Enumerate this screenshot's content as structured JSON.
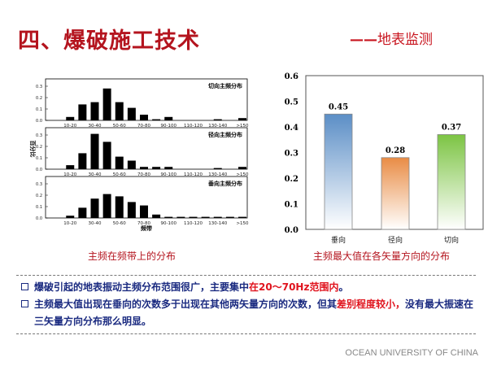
{
  "header": {
    "title": "四、爆破施工技术",
    "subtitle_dash": "——",
    "subtitle": "地表监测"
  },
  "chart_data": [
    {
      "type": "bar",
      "title": "主频在频带上的分布",
      "ylabel": "百分比",
      "xlabel": "频带",
      "ylim": [
        0,
        0.35
      ],
      "yticks": [
        "0.0",
        "0.1",
        "0.2",
        "0.3"
      ],
      "categories": [
        "10-20",
        "20-30",
        "30-40",
        "40-50",
        "50-60",
        "60-70",
        "70-80",
        "80-90",
        "90-100",
        "100-110",
        "110-120",
        "120-130",
        "130-140",
        "140-150",
        ">150"
      ],
      "tick_labels": [
        "10-20",
        "30-40",
        "50-60",
        "70-80",
        "90-100",
        "110-120",
        "130-140",
        ">150"
      ],
      "panels": [
        {
          "name": "切向主频分布",
          "values": [
            0.03,
            0.14,
            0.16,
            0.28,
            0.16,
            0.11,
            0.05,
            0.01,
            0.03,
            0,
            0,
            0,
            0.01,
            0,
            0.02
          ]
        },
        {
          "name": "径向主频分布",
          "values": [
            0.035,
            0.14,
            0.31,
            0.24,
            0.11,
            0.075,
            0.02,
            0.02,
            0.02,
            0,
            0,
            0,
            0.01,
            0,
            0.02
          ]
        },
        {
          "name": "垂向主频分布",
          "values": [
            0.02,
            0.09,
            0.17,
            0.21,
            0.19,
            0.14,
            0.11,
            0.03,
            0.01,
            0.01,
            0.01,
            0.01,
            0.01,
            0.01,
            0.01
          ]
        }
      ]
    },
    {
      "type": "bar",
      "title": "主频最大值在各矢量方向的分布",
      "ylim": [
        0,
        0.6
      ],
      "yticks": [
        "0.0",
        "0.1",
        "0.2",
        "0.3",
        "0.4",
        "0.5",
        "0.6"
      ],
      "categories": [
        "垂向",
        "径向",
        "切向"
      ],
      "values": [
        0.45,
        0.28,
        0.37
      ],
      "labels": [
        "0.45",
        "0.28",
        "0.37"
      ],
      "colors": [
        "#5b8ec6",
        "#e98c45",
        "#7cc443"
      ]
    }
  ],
  "bullets": [
    {
      "pre": "爆破引起的地表振动主频分布范围很广，主要集中",
      "red": "在20～70Hz范围内",
      "post": "。"
    },
    {
      "pre": "主频最大值出现在垂向的次数多于出现在其他两矢量方向的次数，但其",
      "red": "差别程度较小，",
      "post": "没有最大振速在三矢量方向分布那么明显。"
    }
  ],
  "footer": "OCEAN UNIVERSITY OF CHINA"
}
